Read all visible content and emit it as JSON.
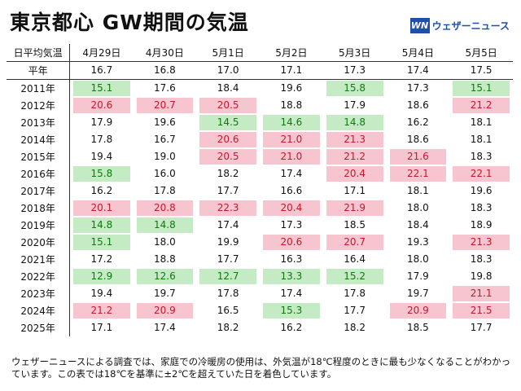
{
  "header": {
    "title": "東京都心 GW期間の気温",
    "brand_logo": "WN",
    "brand_name": "ウェザーニュース"
  },
  "table": {
    "corner_label": "日平均気温",
    "columns": [
      "4月29日",
      "4月30日",
      "5月1日",
      "5月2日",
      "5月3日",
      "5月4日",
      "5月5日"
    ],
    "normal": {
      "label": "平年",
      "values": [
        "16.7",
        "16.8",
        "17.0",
        "17.1",
        "17.3",
        "17.4",
        "17.5"
      ]
    },
    "rows": [
      {
        "year": "2011年",
        "values": [
          "15.1",
          "17.6",
          "18.4",
          "19.6",
          "15.8",
          "17.3",
          "15.1"
        ],
        "marks": [
          "cold",
          "",
          "",
          "",
          "cold",
          "",
          "cold"
        ]
      },
      {
        "year": "2012年",
        "values": [
          "20.6",
          "20.7",
          "20.5",
          "18.8",
          "17.9",
          "18.6",
          "21.2"
        ],
        "marks": [
          "hot",
          "hot",
          "hot",
          "",
          "",
          "",
          "hot"
        ]
      },
      {
        "year": "2013年",
        "values": [
          "17.9",
          "19.6",
          "14.5",
          "14.6",
          "14.8",
          "16.2",
          "18.1"
        ],
        "marks": [
          "",
          "",
          "cold",
          "cold",
          "cold",
          "",
          ""
        ]
      },
      {
        "year": "2014年",
        "values": [
          "17.8",
          "16.7",
          "20.6",
          "21.0",
          "21.3",
          "18.6",
          "18.1"
        ],
        "marks": [
          "",
          "",
          "hot",
          "hot",
          "hot",
          "",
          ""
        ]
      },
      {
        "year": "2015年",
        "values": [
          "19.4",
          "19.0",
          "20.5",
          "21.0",
          "21.2",
          "21.6",
          "18.3"
        ],
        "marks": [
          "",
          "",
          "hot",
          "hot",
          "hot",
          "hot",
          ""
        ]
      },
      {
        "year": "2016年",
        "values": [
          "15.8",
          "16.0",
          "18.2",
          "17.4",
          "20.4",
          "22.1",
          "22.1"
        ],
        "marks": [
          "cold",
          "",
          "",
          "",
          "hot",
          "hot",
          "hot"
        ]
      },
      {
        "year": "2017年",
        "values": [
          "16.2",
          "17.8",
          "17.7",
          "16.6",
          "17.1",
          "18.1",
          "19.6"
        ],
        "marks": [
          "",
          "",
          "",
          "",
          "",
          "",
          ""
        ]
      },
      {
        "year": "2018年",
        "values": [
          "20.1",
          "20.8",
          "22.3",
          "20.4",
          "21.9",
          "18.0",
          "18.3"
        ],
        "marks": [
          "hot",
          "hot",
          "hot",
          "hot",
          "hot",
          "",
          ""
        ]
      },
      {
        "year": "2019年",
        "values": [
          "14.8",
          "14.8",
          "17.4",
          "17.3",
          "18.5",
          "18.4",
          "18.9"
        ],
        "marks": [
          "cold",
          "cold",
          "",
          "",
          "",
          "",
          ""
        ]
      },
      {
        "year": "2020年",
        "values": [
          "15.1",
          "18.0",
          "19.9",
          "20.6",
          "20.7",
          "19.3",
          "21.3"
        ],
        "marks": [
          "cold",
          "",
          "",
          "hot",
          "hot",
          "",
          "hot"
        ]
      },
      {
        "year": "2021年",
        "values": [
          "17.2",
          "18.8",
          "17.7",
          "16.3",
          "16.4",
          "18.0",
          "18.3"
        ],
        "marks": [
          "",
          "",
          "",
          "",
          "",
          "",
          ""
        ]
      },
      {
        "year": "2022年",
        "values": [
          "12.9",
          "12.6",
          "12.7",
          "13.3",
          "15.2",
          "17.9",
          "19.8"
        ],
        "marks": [
          "cold",
          "cold",
          "cold",
          "cold",
          "cold",
          "",
          ""
        ]
      },
      {
        "year": "2023年",
        "values": [
          "19.4",
          "19.7",
          "17.8",
          "17.4",
          "17.8",
          "19.7",
          "21.1"
        ],
        "marks": [
          "",
          "",
          "",
          "",
          "",
          "",
          "hot"
        ]
      },
      {
        "year": "2024年",
        "values": [
          "21.2",
          "20.9",
          "16.5",
          "15.3",
          "17.7",
          "20.9",
          "21.5"
        ],
        "marks": [
          "hot",
          "hot",
          "",
          "cold",
          "",
          "hot",
          "hot"
        ]
      },
      {
        "year": "2025年",
        "values": [
          "17.1",
          "17.4",
          "18.2",
          "16.2",
          "18.2",
          "18.5",
          "17.7"
        ],
        "marks": [
          "",
          "",
          "",
          "",
          "",
          "",
          ""
        ]
      }
    ]
  },
  "colors": {
    "hot_bg": "#f7c5cf",
    "hot_text": "#c4182b",
    "cold_bg": "#c4ebc4",
    "cold_text": "#0e7a0e",
    "brand": "#1f4fa8"
  },
  "footnote": "ウェザーニュースによる調査では、家庭での冷暖房の使用は、外気温が18℃程度のときに最も少なくなることがわかっています。この表では18℃を基準に±2℃を超えていた日を着色しています。"
}
